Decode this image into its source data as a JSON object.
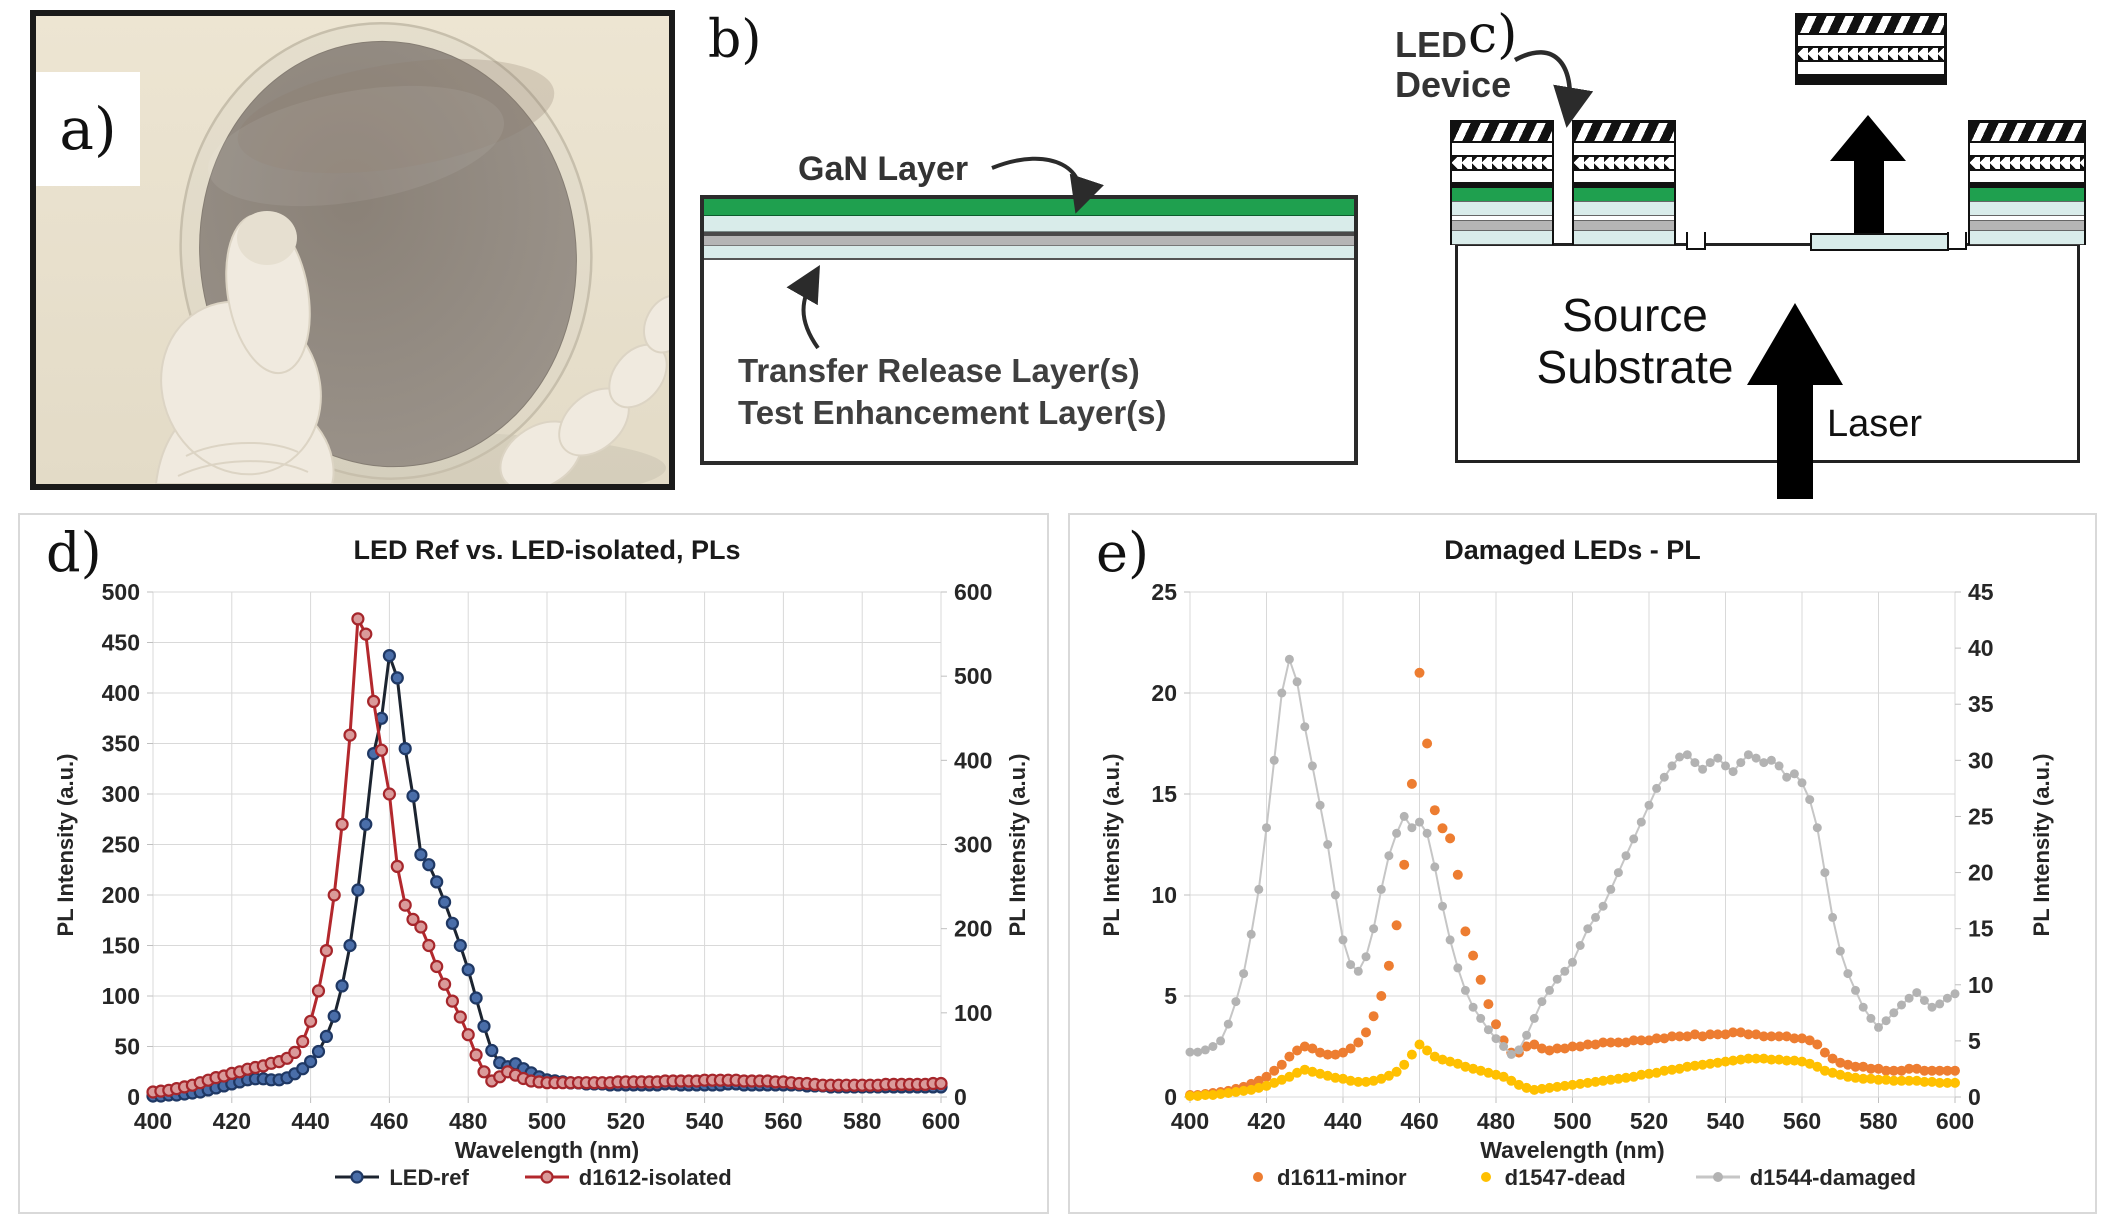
{
  "figure": {
    "panels": {
      "a": {
        "label": "a)"
      },
      "b": {
        "label": "b)",
        "annotations": {
          "gan": "GaN Layer",
          "transfer": "Transfer Release Layer(s)",
          "test": "Test Enhancement Layer(s)"
        }
      },
      "c": {
        "label": "c)",
        "annotations": {
          "led_device": "LED Device",
          "source_substrate": "Source Substrate",
          "laser": "Laser"
        }
      },
      "d": {
        "label": "d)"
      },
      "e": {
        "label": "e)"
      }
    }
  },
  "colors": {
    "gan_green": "#1FA04F",
    "pale_blue": "#D9ECEA",
    "layer_gray": "#B5B5B5",
    "photo_bg": "#E8E0CC",
    "glove": "#F0EADF",
    "wafer_gray": "#948C83",
    "grid": "#D9D9D9",
    "axis_text": "#262626"
  },
  "chart_data": [
    {
      "id": "chart-d",
      "type": "line",
      "title": "LED Ref vs. LED-isolated, PLs",
      "xlabel": "Wavelength (nm)",
      "ylabel_left": "PL Intensity (a.u.)",
      "ylabel_right": "PL Intensity (a.u.)",
      "xlim": [
        400,
        600
      ],
      "xtick_step": 20,
      "ylim_left": [
        0,
        500
      ],
      "ytick_left_step": 50,
      "ylim_right": [
        0,
        600
      ],
      "ytick_right_step": 100,
      "grid": true,
      "legend_position": "bottom",
      "plot": {
        "l": 133,
        "r": 921,
        "t": 77,
        "b": 582
      },
      "x_start": 400,
      "x_step": 2,
      "series": [
        {
          "name": "LED-ref",
          "axis": "left",
          "line_color": "#1C2430",
          "line_width": 3,
          "marker_fill": "#4A6EA9",
          "marker_stroke": "#1F3864",
          "marker_size": 5.5,
          "y": [
            1,
            1,
            2,
            2,
            3,
            4,
            5,
            7,
            9,
            11,
            13,
            15,
            17,
            18,
            18,
            17,
            17,
            19,
            23,
            28,
            35,
            45,
            60,
            80,
            110,
            150,
            205,
            270,
            340,
            375,
            437,
            415,
            345,
            298,
            240,
            230,
            213,
            193,
            172,
            150,
            126,
            98,
            70,
            46,
            34,
            30,
            33,
            28,
            24,
            20,
            17,
            16,
            15,
            14,
            14,
            13,
            13,
            13,
            12,
            12,
            12,
            12,
            12,
            12,
            12,
            13,
            13,
            12,
            12,
            12,
            12,
            12,
            12,
            13,
            13,
            12,
            12,
            12,
            12,
            12,
            12,
            12,
            12,
            11,
            11,
            11,
            10,
            10,
            10,
            10,
            10,
            10,
            10,
            10,
            10,
            10,
            10,
            10,
            10,
            10,
            10
          ]
        },
        {
          "name": "d1612-isolated",
          "axis": "right",
          "line_color": "#B3282D",
          "line_width": 3,
          "marker_fill": "#DA9A9A",
          "marker_stroke": "#A6262B",
          "marker_size": 5.5,
          "y": [
            6,
            7,
            8,
            10,
            12,
            14,
            17,
            20,
            23,
            25,
            28,
            30,
            33,
            35,
            37,
            40,
            42,
            46,
            53,
            66,
            90,
            126,
            174,
            240,
            324,
            430,
            568,
            550,
            470,
            412,
            360,
            274,
            228,
            211,
            202,
            180,
            155,
            134,
            114,
            95,
            74,
            50,
            30,
            19,
            24,
            30,
            26,
            22,
            19,
            18,
            17,
            17,
            17,
            17,
            17,
            17,
            17,
            17,
            17,
            18,
            18,
            18,
            18,
            18,
            18,
            19,
            19,
            19,
            19,
            19,
            20,
            20,
            20,
            20,
            20,
            19,
            19,
            19,
            19,
            18,
            18,
            17,
            16,
            16,
            15,
            14,
            14,
            14,
            14,
            14,
            14,
            14,
            14,
            15,
            15,
            15,
            15,
            15,
            15,
            16,
            16
          ]
        }
      ]
    },
    {
      "id": "chart-e",
      "type": "scatter",
      "title": "Damaged LEDs - PL",
      "xlabel": "Wavelength (nm)",
      "ylabel_left": "PL Intensity (a.u.)",
      "ylabel_right": "PL Intensity (a.u.)",
      "xlim": [
        400,
        600
      ],
      "xtick_step": 20,
      "ylim_left": [
        0,
        25
      ],
      "ytick_left_step": 5,
      "ylim_right": [
        0,
        45
      ],
      "ytick_right_step": 5,
      "grid": true,
      "legend_position": "bottom",
      "plot": {
        "l": 120,
        "r": 885,
        "t": 77,
        "b": 582
      },
      "x_start": 400,
      "x_step": 2,
      "series": [
        {
          "name": "d1611-minor",
          "axis": "left",
          "line_color": null,
          "marker_fill": "#ED7D31",
          "marker_stroke": null,
          "marker_size": 5,
          "y": [
            0.1,
            0.1,
            0.15,
            0.2,
            0.25,
            0.3,
            0.4,
            0.5,
            0.65,
            0.8,
            1.0,
            1.3,
            1.6,
            2.0,
            2.3,
            2.5,
            2.4,
            2.2,
            2.1,
            2.1,
            2.2,
            2.4,
            2.7,
            3.2,
            4.0,
            5.0,
            6.5,
            8.5,
            11.5,
            15.5,
            21.0,
            17.5,
            14.2,
            13.3,
            12.8,
            11.0,
            8.2,
            7.0,
            5.8,
            4.6,
            3.6,
            2.8,
            2.2,
            2.2,
            2.5,
            2.6,
            2.4,
            2.3,
            2.4,
            2.4,
            2.5,
            2.5,
            2.6,
            2.6,
            2.7,
            2.7,
            2.7,
            2.7,
            2.8,
            2.8,
            2.8,
            2.9,
            2.9,
            3.0,
            3.0,
            3.0,
            3.1,
            3.0,
            3.1,
            3.1,
            3.1,
            3.2,
            3.2,
            3.1,
            3.1,
            3.0,
            3.0,
            3.0,
            3.0,
            2.9,
            2.9,
            2.8,
            2.6,
            2.2,
            1.9,
            1.7,
            1.6,
            1.5,
            1.5,
            1.4,
            1.4,
            1.3,
            1.3,
            1.3,
            1.4,
            1.4,
            1.3,
            1.3,
            1.3,
            1.3,
            1.3
          ]
        },
        {
          "name": "d1547-dead",
          "axis": "left",
          "line_color": null,
          "marker_fill": "#FFC000",
          "marker_stroke": null,
          "marker_size": 5,
          "y": [
            0.05,
            0.05,
            0.1,
            0.1,
            0.15,
            0.2,
            0.25,
            0.3,
            0.35,
            0.45,
            0.55,
            0.7,
            0.85,
            1.0,
            1.2,
            1.35,
            1.25,
            1.15,
            1.05,
            0.95,
            0.9,
            0.8,
            0.75,
            0.75,
            0.8,
            0.9,
            1.05,
            1.25,
            1.6,
            2.1,
            2.6,
            2.3,
            2.0,
            1.85,
            1.75,
            1.65,
            1.5,
            1.4,
            1.3,
            1.2,
            1.1,
            1.0,
            0.8,
            0.6,
            0.45,
            0.35,
            0.4,
            0.45,
            0.5,
            0.55,
            0.6,
            0.65,
            0.7,
            0.75,
            0.8,
            0.85,
            0.9,
            0.95,
            1.0,
            1.1,
            1.15,
            1.2,
            1.3,
            1.35,
            1.4,
            1.5,
            1.55,
            1.6,
            1.65,
            1.7,
            1.75,
            1.8,
            1.85,
            1.9,
            1.9,
            1.9,
            1.85,
            1.85,
            1.8,
            1.8,
            1.75,
            1.65,
            1.5,
            1.3,
            1.2,
            1.1,
            1.0,
            0.95,
            0.9,
            0.9,
            0.85,
            0.85,
            0.8,
            0.8,
            0.8,
            0.8,
            0.75,
            0.75,
            0.7,
            0.7,
            0.7
          ]
        },
        {
          "name": "d1544-damaged",
          "axis": "right",
          "line_color": "#C6C6C6",
          "line_width": 2,
          "marker_fill": "#B3B3B3",
          "marker_stroke": null,
          "marker_size": 4.5,
          "y": [
            4.0,
            4.0,
            4.2,
            4.5,
            5.0,
            6.5,
            8.5,
            11,
            14.5,
            18.5,
            24,
            30,
            36,
            39,
            37,
            33,
            29.5,
            26,
            22.5,
            18,
            14,
            11.8,
            11.2,
            12.5,
            15,
            18.5,
            21.5,
            23.5,
            25,
            24,
            24.5,
            23.5,
            20.5,
            17,
            14,
            11.5,
            9.5,
            8,
            7,
            6,
            5.2,
            4.5,
            3.8,
            4.2,
            5.5,
            7,
            8.5,
            9.5,
            10.5,
            11.2,
            12,
            13.5,
            15,
            16,
            17,
            18.5,
            20,
            21.5,
            23,
            24.5,
            26,
            27.5,
            28.5,
            29.5,
            30.3,
            30.5,
            29.8,
            29.2,
            29.8,
            30.2,
            29.5,
            29,
            29.8,
            30.5,
            30.2,
            29.8,
            30,
            29.5,
            28.5,
            28.8,
            28,
            26.5,
            24,
            20,
            16,
            13,
            11,
            9.5,
            8,
            7,
            6.2,
            6.8,
            7.5,
            8.2,
            8.8,
            9.3,
            8.6,
            8,
            8.3,
            8.8,
            9.2
          ]
        }
      ]
    }
  ]
}
